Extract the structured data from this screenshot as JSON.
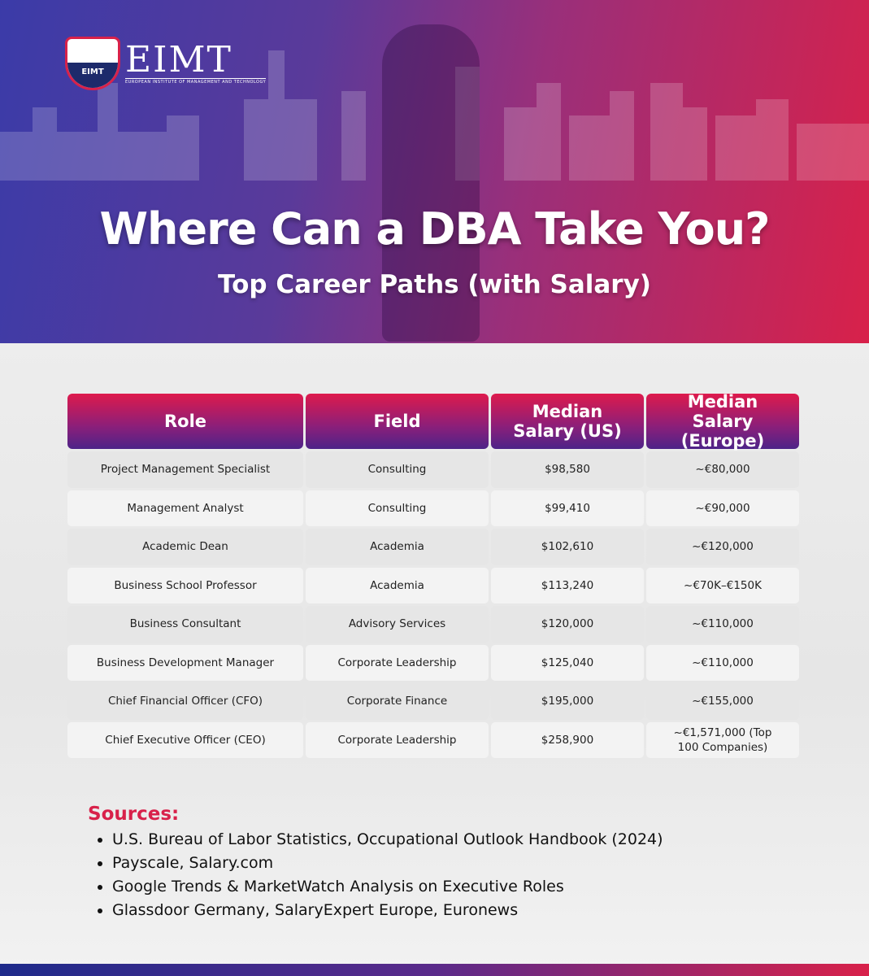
{
  "logo": {
    "short": "EIMT",
    "name": "EIMT",
    "tagline": "EUROPEAN INSTITUTE OF MANAGEMENT AND TECHNOLOGY"
  },
  "title": "Where Can a DBA Take You?",
  "subtitle": "Top Career Paths (with Salary)",
  "colors": {
    "accent": "#d8214a",
    "header_start": "#3b3ba8",
    "header_end": "#d8214a"
  },
  "table": {
    "headers": [
      "Role",
      "Field",
      "Median Salary (US)",
      "Median Salary (Europe)"
    ],
    "rows": [
      [
        "Project Management Specialist",
        "Consulting",
        "$98,580",
        "~€80,000"
      ],
      [
        "Management Analyst",
        "Consulting",
        "$99,410",
        "~€90,000"
      ],
      [
        "Academic Dean",
        "Academia",
        "$102,610",
        "~€120,000"
      ],
      [
        "Business School Professor",
        "Academia",
        "$113,240",
        "~€70K–€150K"
      ],
      [
        "Business Consultant",
        "Advisory Services",
        "$120,000",
        "~€110,000"
      ],
      [
        "Business Development Manager",
        "Corporate Leadership",
        "$125,040",
        "~€110,000"
      ],
      [
        "Chief Financial Officer (CFO)",
        "Corporate Finance",
        "$195,000",
        "~€155,000"
      ],
      [
        "Chief Executive Officer (CEO)",
        "Corporate Leadership",
        "$258,900",
        "~€1,571,000 (Top 100 Companies)"
      ]
    ]
  },
  "sources": {
    "title": "Sources:",
    "items": [
      "U.S. Bureau of Labor Statistics, Occupational Outlook Handbook (2024)",
      "Payscale, Salary.com",
      "Google Trends & MarketWatch Analysis on Executive Roles",
      "Glassdoor Germany, SalaryExpert Europe, Euronews"
    ]
  }
}
